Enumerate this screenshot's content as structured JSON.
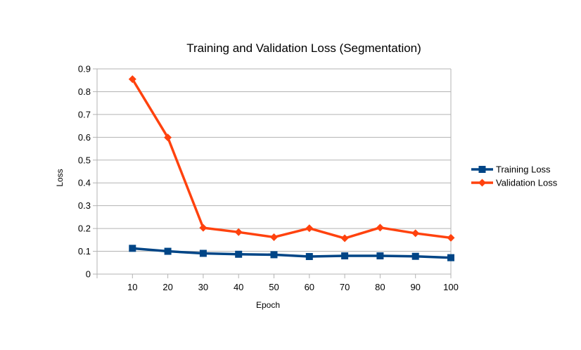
{
  "chart_data": {
    "type": "line",
    "title": "Training and Validation Loss (Segmentation)",
    "xlabel": "Epoch",
    "ylabel": "Loss",
    "categories": [
      "10",
      "20",
      "30",
      "40",
      "50",
      "60",
      "70",
      "80",
      "90",
      "100"
    ],
    "ylim": [
      0,
      0.9
    ],
    "yticks": [
      "0",
      "0.1",
      "0.2",
      "0.3",
      "0.4",
      "0.5",
      "0.6",
      "0.7",
      "0.8",
      "0.9"
    ],
    "grid": true,
    "legend_position": "right",
    "series": [
      {
        "name": "Training Loss",
        "color": "#004586",
        "marker": "square",
        "values": [
          0.113,
          0.1,
          0.091,
          0.087,
          0.085,
          0.077,
          0.08,
          0.08,
          0.078,
          0.072
        ]
      },
      {
        "name": "Validation Loss",
        "color": "#ff420e",
        "marker": "diamond",
        "values": [
          0.855,
          0.599,
          0.203,
          0.184,
          0.162,
          0.201,
          0.157,
          0.204,
          0.179,
          0.159
        ]
      }
    ]
  }
}
